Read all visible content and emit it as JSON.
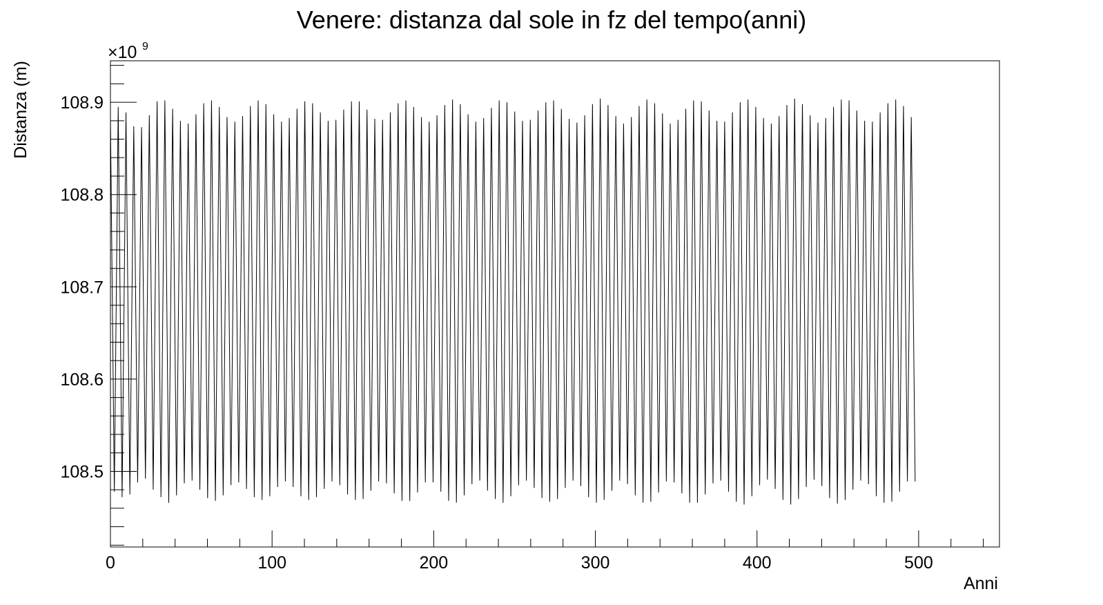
{
  "chart_data": {
    "type": "line",
    "title": "Venere: distanza dal sole in fz del tempo(anni)",
    "xlabel": "Anni",
    "ylabel": "Distanza (m)",
    "y_multiplier": "×10",
    "y_multiplier_exp": "9",
    "xlim": [
      0,
      550
    ],
    "ylim": [
      108.418,
      108.945
    ],
    "x_ticks": [
      0,
      100,
      200,
      300,
      400,
      500
    ],
    "x_tick_labels": [
      "0",
      "100",
      "200",
      "300",
      "400",
      "500"
    ],
    "y_ticks": [
      108.5,
      108.6,
      108.7,
      108.8,
      108.9
    ],
    "y_tick_labels": [
      "108.5",
      "108.6",
      "108.7",
      "108.8",
      "108.9"
    ],
    "grid": false,
    "series": [
      {
        "oscillation_period_years": 4.81,
        "x_start": 0,
        "x_end": 499,
        "max_values": [
          108.884,
          108.895,
          108.889,
          108.874,
          108.873,
          108.886,
          108.901,
          108.902,
          108.893,
          108.88,
          108.877,
          108.887,
          108.899,
          108.902,
          108.895,
          108.884,
          108.879,
          108.885,
          108.896,
          108.902,
          108.898,
          108.887,
          108.879,
          108.883,
          108.893,
          108.901,
          108.899,
          108.889,
          108.88,
          108.881,
          108.892,
          108.901,
          108.901,
          108.892,
          108.882,
          108.881,
          108.889,
          108.899,
          108.902,
          108.895,
          108.884,
          108.879,
          108.886,
          108.897,
          108.903,
          108.898,
          108.887,
          108.879,
          108.883,
          108.894,
          108.902,
          108.9,
          108.89,
          108.88,
          108.881,
          108.891,
          108.9,
          108.902,
          108.893,
          108.882,
          108.878,
          108.886,
          108.898,
          108.904,
          108.897,
          108.885,
          108.877,
          108.884,
          108.896,
          108.903,
          108.899,
          108.888,
          108.877,
          108.881,
          108.893,
          108.902,
          108.901,
          108.891,
          108.88,
          108.879,
          108.889,
          108.9,
          108.903,
          108.895,
          108.883,
          108.877,
          108.885,
          108.897,
          108.904,
          108.898,
          108.886,
          108.878,
          108.883,
          108.895,
          108.903,
          108.902,
          108.891,
          108.88,
          108.879,
          108.889,
          108.899,
          108.903,
          108.896,
          108.884,
          108.877
        ],
        "min_values": [
          108.478,
          108.472,
          108.475,
          108.488,
          108.492,
          108.48,
          108.472,
          108.466,
          108.474,
          108.487,
          108.49,
          108.48,
          108.471,
          108.468,
          108.474,
          108.485,
          108.488,
          108.481,
          108.472,
          108.469,
          108.473,
          108.483,
          108.489,
          108.483,
          108.473,
          108.469,
          108.472,
          108.481,
          108.489,
          108.485,
          108.475,
          108.469,
          108.47,
          108.479,
          108.489,
          108.487,
          108.476,
          108.468,
          108.468,
          108.477,
          108.488,
          108.488,
          108.478,
          108.468,
          108.466,
          108.474,
          108.486,
          108.49,
          108.479,
          108.47,
          108.466,
          108.473,
          108.485,
          108.49,
          108.482,
          108.471,
          108.467,
          108.47,
          108.482,
          108.49,
          108.484,
          108.472,
          108.466,
          108.469,
          108.479,
          108.49,
          108.486,
          108.474,
          108.466,
          108.467,
          108.477,
          108.489,
          108.488,
          108.476,
          108.466,
          108.466,
          108.475,
          108.487,
          108.49,
          108.478,
          108.467,
          108.464,
          108.473,
          108.485,
          108.491,
          108.481,
          108.469,
          108.464,
          108.47,
          108.483,
          108.491,
          108.484,
          108.471,
          108.465,
          108.469,
          108.48,
          108.49,
          108.486,
          108.473,
          108.466,
          108.467,
          108.478,
          108.489,
          108.489,
          108.476
        ]
      }
    ]
  }
}
